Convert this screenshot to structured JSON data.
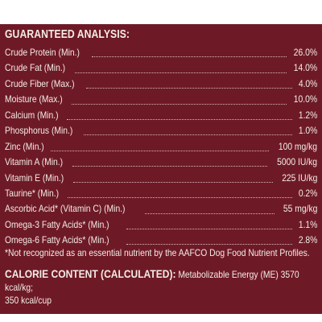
{
  "title": "GUARANTEED ANALYSIS:",
  "rows": [
    {
      "label": "Crude Protein (Min.)",
      "value": "26.0%"
    },
    {
      "label": "Crude Fat (Min.)",
      "value": "14.0%"
    },
    {
      "label": "Crude Fiber (Max.)",
      "value": "4.0%"
    },
    {
      "label": "Moisture (Max.)",
      "value": "10.0%"
    },
    {
      "label": "Calcium (Min.)",
      "value": "1.2%"
    },
    {
      "label": "Phosphorus (Min.)",
      "value": "1.0%"
    },
    {
      "label": "Zinc (Min.)",
      "value": "100 mg/kg"
    },
    {
      "label": "Vitamin A (Min.)",
      "value": "5000 IU/kg"
    },
    {
      "label": "Vitamin E (Min.)",
      "value": "225 IU/kg"
    },
    {
      "label": "Taurine* (Min.)",
      "value": "0.2%"
    },
    {
      "label": "Ascorbic Acid* (Vitamin C) (Min.)",
      "value": "55 mg/kg"
    },
    {
      "label": "Omega-3 Fatty Acids* (Min.)",
      "value": "1.1%"
    },
    {
      "label": "Omega-6 Fatty Acids* (Min.)",
      "value": "2.8%"
    }
  ],
  "footnote": "*Not recognized as an essential nutrient by the AAFCO Dog Food Nutrient Profiles.",
  "calorie": {
    "title": "CALORIE CONTENT (CALCULATED):",
    "text": "Metabolizable Energy (ME) 3570 kcal/kg;",
    "text2": "350 kcal/cup"
  },
  "colors": {
    "background": "#6e1a26",
    "text": "#f4ece6"
  }
}
